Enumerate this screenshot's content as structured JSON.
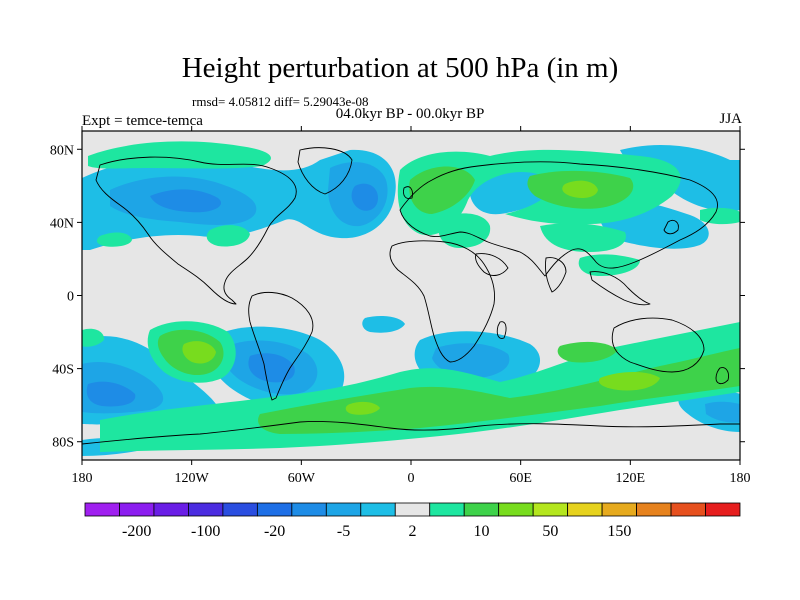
{
  "title": "Height perturbation at 500 hPa (in m)",
  "stats": "rmsd= 4.05812 diff= 5.29043e-08",
  "left_label": "Expt = temce-temca",
  "center_label": "04.0kyr BP - 00.0kyr BP",
  "right_label": "JJA",
  "map": {
    "projection": "cylindrical equidistant",
    "lon_range": [
      -180,
      180
    ],
    "lat_range": [
      -90,
      90
    ],
    "lat_ticks": [
      {
        "value": 80,
        "label": "80N"
      },
      {
        "value": 40,
        "label": "40N"
      },
      {
        "value": 0,
        "label": "0"
      },
      {
        "value": -40,
        "label": "40S"
      },
      {
        "value": -80,
        "label": "80S"
      }
    ],
    "lon_ticks": [
      {
        "value": -180,
        "label": "180"
      },
      {
        "value": -120,
        "label": "120W"
      },
      {
        "value": -60,
        "label": "60W"
      },
      {
        "value": 0,
        "label": "0"
      },
      {
        "value": 60,
        "label": "60E"
      },
      {
        "value": 120,
        "label": "120E"
      },
      {
        "value": 180,
        "label": "180"
      }
    ],
    "background_color": "#e6e6e6"
  },
  "colorbar": {
    "colors": [
      "#a020f0",
      "#8c1ef0",
      "#6a1ee6",
      "#4b2ce0",
      "#2a4ee0",
      "#1e6fe6",
      "#1e8ce6",
      "#1ea5e6",
      "#1ebee6",
      "#e6e6e6",
      "#1ee6a0",
      "#3ed24a",
      "#78dc1e",
      "#b4e61e",
      "#e6d21e",
      "#e6aa1e",
      "#e6821e",
      "#e6501e",
      "#e61e1e"
    ],
    "labels": [
      "-200",
      "-100",
      "-20",
      "-5",
      "2",
      "10",
      "50",
      "150"
    ]
  }
}
